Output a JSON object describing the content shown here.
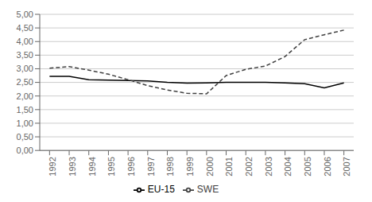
{
  "chart_data": {
    "type": "line",
    "x": [
      1992,
      1993,
      1994,
      1995,
      1996,
      1997,
      1998,
      1999,
      2000,
      2001,
      2002,
      2003,
      2004,
      2005,
      2006,
      2007
    ],
    "xlim": [
      1991.5,
      2007.5
    ],
    "xticks": [
      1992,
      1993,
      1994,
      1995,
      1996,
      1997,
      1998,
      1999,
      2000,
      2001,
      2002,
      2003,
      2004,
      2005,
      2006,
      2007
    ],
    "ylim": [
      0.0,
      5.0
    ],
    "yticks": [
      {
        "value": 0.0,
        "label": "0,00"
      },
      {
        "value": 0.5,
        "label": "0,50"
      },
      {
        "value": 1.0,
        "label": "1,00"
      },
      {
        "value": 1.5,
        "label": "1,50"
      },
      {
        "value": 2.0,
        "label": "2,00"
      },
      {
        "value": 2.5,
        "label": "2,50"
      },
      {
        "value": 3.0,
        "label": "3,00"
      },
      {
        "value": 3.5,
        "label": "3,50"
      },
      {
        "value": 4.0,
        "label": "4,00"
      },
      {
        "value": 4.5,
        "label": "4,50"
      },
      {
        "value": 5.0,
        "label": "5,00"
      }
    ],
    "series": [
      {
        "name": "EU-15",
        "color": "#000000",
        "line_style": "solid",
        "values": [
          2.72,
          2.72,
          2.6,
          2.58,
          2.57,
          2.55,
          2.5,
          2.47,
          2.48,
          2.5,
          2.5,
          2.5,
          2.48,
          2.45,
          2.3,
          2.48
        ]
      },
      {
        "name": "SWE",
        "color": "#404040",
        "line_style": "dashed",
        "values": [
          3.02,
          3.08,
          2.95,
          2.8,
          2.6,
          2.38,
          2.22,
          2.1,
          2.08,
          2.75,
          2.98,
          3.1,
          3.45,
          4.07,
          4.25,
          4.42
        ]
      }
    ],
    "grid": true,
    "legend": "bottom"
  }
}
